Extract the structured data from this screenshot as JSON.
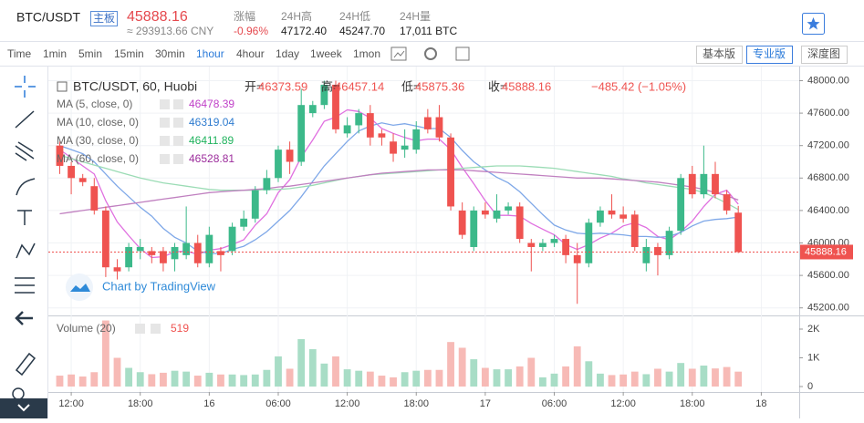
{
  "header": {
    "symbol": "BTC/USDT",
    "board": "主板",
    "price": "45888.16",
    "cny": "≈ 293913.66 CNY",
    "stats": [
      {
        "label": "涨幅",
        "value": "-0.96%"
      },
      {
        "label": "24H高",
        "value": "47172.40"
      },
      {
        "label": "24H低",
        "value": "45247.70"
      },
      {
        "label": "24H量",
        "value": "17,011 BTC"
      }
    ]
  },
  "toolbar": {
    "time_label": "Time",
    "intervals": [
      "1min",
      "5min",
      "15min",
      "30min",
      "1hour",
      "4hour",
      "1day",
      "1week",
      "1mon"
    ],
    "active_interval": 4,
    "views": [
      "基本版",
      "专业版",
      "深度图"
    ],
    "active_view": 1
  },
  "chart_data": {
    "type": "candlestick",
    "title": "BTC/USDT, 60, Huobi",
    "ohlc_labels": [
      "开=",
      "高=",
      "低=",
      "收="
    ],
    "change": "−485.42 (−1.05%)",
    "branding": "Chart by TradingView",
    "up_color": "#3cb98a",
    "down_color": "#ef5350",
    "open": [
      47200,
      46950,
      46800,
      46700,
      46400,
      45700,
      45700,
      45900,
      45900,
      45900,
      45800,
      45850,
      46000,
      45750,
      45900,
      45900,
      46200,
      46300,
      46650,
      46800,
      47150,
      47000,
      47600,
      47700,
      47950,
      47350,
      47450,
      47600,
      47350,
      47250,
      47150,
      47150,
      47550,
      47550,
      47300,
      46400,
      45950,
      46400,
      46300,
      46400,
      46450,
      46000,
      45950,
      46000,
      46050,
      45850,
      45750,
      46250,
      46400,
      46350,
      46350,
      45750,
      45950,
      45850,
      46150,
      46850,
      46600,
      46850,
      46600,
      46373.59
    ],
    "high": [
      47250,
      47000,
      46850,
      46800,
      46450,
      45800,
      46000,
      46050,
      45950,
      45950,
      46000,
      46450,
      46100,
      46200,
      45950,
      46250,
      46400,
      46700,
      46900,
      47200,
      47250,
      47900,
      47750,
      48000,
      48000,
      47550,
      47650,
      47700,
      47400,
      47350,
      47400,
      47500,
      47650,
      47700,
      47350,
      46500,
      46450,
      46500,
      46600,
      46500,
      46500,
      46050,
      46050,
      46100,
      46100,
      46000,
      46300,
      46450,
      46600,
      46450,
      46400,
      46050,
      46000,
      46200,
      46850,
      46950,
      47200,
      47000,
      46650,
      46457.14
    ],
    "low": [
      46850,
      46600,
      46700,
      46350,
      45580,
      45550,
      45650,
      45800,
      45750,
      45650,
      45650,
      45800,
      45700,
      45700,
      45650,
      45850,
      46150,
      46250,
      46600,
      46750,
      46850,
      46950,
      47550,
      47650,
      47350,
      47300,
      47350,
      47200,
      47200,
      47000,
      47050,
      47100,
      47350,
      47250,
      46400,
      46050,
      45900,
      46300,
      46250,
      46350,
      46000,
      45650,
      45900,
      45950,
      45750,
      45250,
      45700,
      46200,
      46300,
      46250,
      45900,
      45650,
      45600,
      45800,
      46100,
      46550,
      46550,
      46550,
      46350,
      45875.36
    ],
    "close": [
      46950,
      46800,
      46750,
      46400,
      45700,
      45650,
      45950,
      45950,
      45850,
      45750,
      45950,
      46000,
      45750,
      46100,
      45850,
      46200,
      46300,
      46650,
      46800,
      47150,
      47000,
      47700,
      47700,
      47950,
      47400,
      47450,
      47600,
      47300,
      47300,
      47100,
      47200,
      47400,
      47400,
      47300,
      46450,
      46100,
      46400,
      46350,
      46400,
      46450,
      46050,
      45950,
      46000,
      46050,
      45850,
      45750,
      46250,
      46400,
      46350,
      46300,
      45950,
      45950,
      45850,
      46150,
      46800,
      46600,
      46850,
      46600,
      46400,
      45888.16
    ],
    "studies": [
      {
        "name": "MA (5, close, 0)",
        "color": "#c040c8",
        "line_color": "#e070e0",
        "values": [
          47150,
          47050,
          46950,
          46850,
          46520,
          46260,
          46090,
          45930,
          45820,
          45830,
          45890,
          45900,
          45860,
          45910,
          45930,
          45980,
          46040,
          46220,
          46360,
          46620,
          46780,
          47060,
          47270,
          47500,
          47550,
          47640,
          47620,
          47540,
          47410,
          47350,
          47300,
          47260,
          47280,
          47280,
          47150,
          46930,
          46730,
          46520,
          46340,
          46340,
          46330,
          46240,
          46170,
          46100,
          45980,
          45920,
          45980,
          46060,
          46120,
          46210,
          46250,
          46190,
          46080,
          46040,
          46140,
          46270,
          46450,
          46600,
          46650,
          46478.39
        ]
      },
      {
        "name": "MA (10, close, 0)",
        "color": "#2e7bcf",
        "line_color": "#7fa8e8",
        "values": [
          47200,
          47150,
          47100,
          47000,
          46850,
          46700,
          46570,
          46440,
          46330,
          46180,
          46070,
          46000,
          45900,
          45870,
          45870,
          45920,
          45960,
          46040,
          46140,
          46270,
          46400,
          46570,
          46760,
          46950,
          47100,
          47250,
          47380,
          47440,
          47480,
          47450,
          47470,
          47440,
          47410,
          47410,
          47300,
          47140,
          47000,
          46900,
          46810,
          46740,
          46630,
          46490,
          46350,
          46220,
          46160,
          46120,
          46110,
          46120,
          46110,
          46100,
          46080,
          46080,
          46070,
          46080,
          46130,
          46210,
          46270,
          46290,
          46300,
          46319.04
        ]
      },
      {
        "name": "MA (30, close, 0)",
        "color": "#21b35e",
        "line_color": "#9bdcb5",
        "values": [
          47080,
          47040,
          47000,
          46960,
          46920,
          46880,
          46840,
          46800,
          46770,
          46740,
          46720,
          46700,
          46680,
          46660,
          46650,
          46650,
          46650,
          46650,
          46660,
          46660,
          46670,
          46690,
          46710,
          46740,
          46770,
          46800,
          46820,
          46840,
          46850,
          46860,
          46870,
          46880,
          46890,
          46900,
          46910,
          46920,
          46930,
          46940,
          46950,
          46950,
          46950,
          46940,
          46930,
          46920,
          46900,
          46880,
          46860,
          46840,
          46820,
          46790,
          46770,
          46740,
          46720,
          46700,
          46680,
          46660,
          46620,
          46560,
          46490,
          46411.89
        ]
      },
      {
        "name": "MA (60, close, 0)",
        "color": "#9c2d9c",
        "line_color": "#c080c0",
        "values": [
          46360,
          46380,
          46400,
          46420,
          46440,
          46460,
          46480,
          46500,
          46520,
          46540,
          46560,
          46580,
          46600,
          46620,
          46630,
          46640,
          46650,
          46660,
          46670,
          46690,
          46700,
          46720,
          46740,
          46760,
          46780,
          46800,
          46820,
          46840,
          46860,
          46870,
          46880,
          46890,
          46900,
          46900,
          46900,
          46900,
          46890,
          46880,
          46870,
          46860,
          46850,
          46840,
          46830,
          46820,
          46810,
          46800,
          46800,
          46800,
          46790,
          46780,
          46770,
          46760,
          46750,
          46730,
          46710,
          46690,
          46660,
          46620,
          46580,
          46528.81
        ]
      }
    ],
    "volume": {
      "name": "Volume (20)",
      "up_color": "#a8ddc6",
      "down_color": "#f7bab6",
      "ylim": [
        -190,
        2476
      ],
      "yticks": [
        {
          "value": 0,
          "label": "0"
        },
        {
          "value": 1000,
          "label": "1K"
        },
        {
          "value": 2000,
          "label": "2K"
        }
      ],
      "values": [
        380,
        420,
        350,
        500,
        2300,
        1000,
        650,
        500,
        430,
        480,
        550,
        520,
        380,
        480,
        420,
        420,
        400,
        420,
        580,
        1050,
        620,
        1650,
        1300,
        800,
        1050,
        600,
        550,
        520,
        380,
        320,
        500,
        550,
        580,
        580,
        1550,
        1350,
        950,
        650,
        600,
        600,
        700,
        1000,
        320,
        450,
        700,
        1400,
        880,
        450,
        400,
        420,
        520,
        430,
        620,
        520,
        820,
        620,
        730,
        630,
        680,
        519
      ]
    },
    "ylim": [
      45107,
      48174
    ],
    "yticks": [
      {
        "value": 45200,
        "label": "45200.00"
      },
      {
        "value": 45600,
        "label": "45600.00"
      },
      {
        "value": 46000,
        "label": "46000.00"
      },
      {
        "value": 46400,
        "label": "46400.00"
      },
      {
        "value": 46800,
        "label": "46800.00"
      },
      {
        "value": 47200,
        "label": "47200.00"
      },
      {
        "value": 47600,
        "label": "47600.00"
      },
      {
        "value": 48000,
        "label": "48000.00"
      }
    ],
    "xlim": [
      -0.99,
      64.3
    ],
    "xticks": [
      {
        "value": 1,
        "label": "12:00"
      },
      {
        "value": 7,
        "label": "18:00"
      },
      {
        "value": 13,
        "label": "16"
      },
      {
        "value": 19,
        "label": "06:00"
      },
      {
        "value": 25,
        "label": "12:00"
      },
      {
        "value": 31,
        "label": "18:00"
      },
      {
        "value": 37,
        "label": "17"
      },
      {
        "value": 43,
        "label": "06:00"
      },
      {
        "value": 49,
        "label": "12:00"
      },
      {
        "value": 55,
        "label": "18:00"
      },
      {
        "value": 61,
        "label": "18"
      }
    ]
  }
}
